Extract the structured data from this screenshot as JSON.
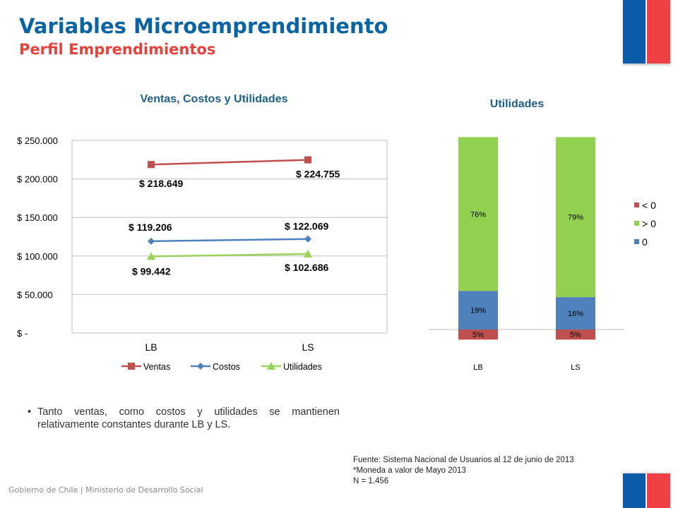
{
  "header": {
    "title": "Variables Microemprendimiento",
    "subtitle": "Perfil Emprendimientos"
  },
  "colors": {
    "title_blue": "#0a64a4",
    "subtitle_red": "#e8413c",
    "flag_blue": "#0b5ba8",
    "flag_red": "#ef4145"
  },
  "chart_data": [
    {
      "type": "line",
      "title": "Ventas, Costos y Utilidades",
      "categories": [
        "LB",
        "LS"
      ],
      "y_ticks": [
        "$ 250.000",
        "$ 200.000",
        "$ 150.000",
        "$ 100.000",
        "$ 50.000",
        "$ -"
      ],
      "ylim": [
        0,
        250000
      ],
      "series": [
        {
          "name": "Ventas",
          "values": [
            218649,
            224755
          ],
          "labels": [
            "$ 218.649",
            "$ 224.755"
          ],
          "color": "#c0504d",
          "marker": "square"
        },
        {
          "name": "Costos",
          "values": [
            119206,
            122069
          ],
          "labels": [
            "$ 119.206",
            "$ 122.069"
          ],
          "color": "#4f81bd",
          "marker": "diamond"
        },
        {
          "name": "Utilidades",
          "values": [
            99442,
            102686
          ],
          "labels": [
            "$ 99.442",
            "$ 102.686"
          ],
          "color": "#9bd35a",
          "marker": "triangle"
        }
      ],
      "grid": true,
      "legend": "bottom"
    },
    {
      "type": "bar",
      "stacked": true,
      "title": "Utilidades",
      "categories": [
        "LB",
        "LS"
      ],
      "series": [
        {
          "name": "< 0",
          "values": [
            5,
            5
          ],
          "labels": [
            "5%",
            "5%"
          ],
          "color": "#c0504d",
          "below_axis": true
        },
        {
          "name": "0",
          "values": [
            19,
            16
          ],
          "labels": [
            "19%",
            "16%"
          ],
          "color": "#4f81bd"
        },
        {
          "name": "> 0",
          "values": [
            76,
            79
          ],
          "labels": [
            "76%",
            "79%"
          ],
          "color": "#92d050"
        }
      ],
      "legend": "right",
      "legend_order": [
        "< 0",
        "> 0",
        "0"
      ]
    }
  ],
  "bullet": {
    "text": "Tanto ventas, como costos y utilidades se mantienen relativamente constantes durante LB y LS."
  },
  "notes": {
    "source": "Fuente: Sistema Nacional de Usuarios al 12 de junio de 2013",
    "currency": "*Moneda a valor de Mayo 2013",
    "n": "N = 1.456"
  },
  "footer": {
    "text": "Gobierno de Chile | Ministerio de Desarrollo Social"
  }
}
